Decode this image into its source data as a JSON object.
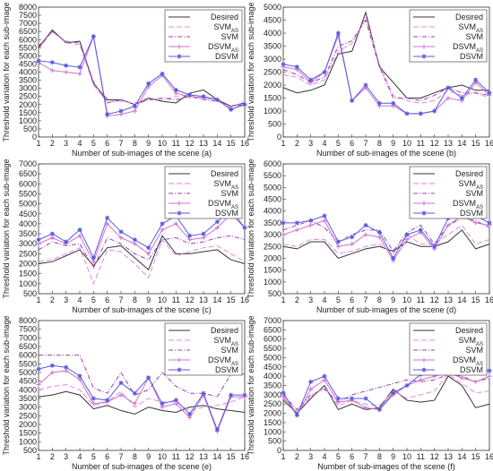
{
  "ylabel": "Threshold variation for each sub-image",
  "xlabel_prefix": "Number of sub-images of the scene",
  "legend": [
    "Desired",
    "SVM",
    "SVM",
    "DSVM",
    "DSVM"
  ],
  "legend_sub": [
    "",
    "AS",
    "",
    "AS",
    ""
  ],
  "styles": {
    "Desired": {
      "color": "#333333",
      "dash": "",
      "marker": "none"
    },
    "SVM_AS": {
      "color": "#e08ae0",
      "dash": "6,3",
      "marker": "none"
    },
    "SVM": {
      "color": "#9b3fb0",
      "dash": "5,2,1,2",
      "marker": "none"
    },
    "DSVM_AS": {
      "color": "#d070d0",
      "dash": "",
      "marker": "plus"
    },
    "DSVM": {
      "color": "#5a5ae0",
      "dash": "",
      "marker": "star"
    }
  },
  "chart_data": [
    {
      "type": "line",
      "panel": "(a)",
      "x": [
        1,
        2,
        3,
        4,
        5,
        6,
        7,
        8,
        9,
        10,
        11,
        12,
        13,
        14,
        15,
        16
      ],
      "ylim": [
        0,
        8000
      ],
      "yticks": [
        0,
        500,
        1000,
        1500,
        2000,
        2500,
        3000,
        3500,
        4000,
        4500,
        5000,
        5500,
        6000,
        6500,
        7000,
        7500,
        8000
      ],
      "series": [
        {
          "name": "Desired",
          "values": [
            5500,
            6600,
            5800,
            5900,
            3300,
            2300,
            2300,
            2000,
            2400,
            2200,
            2100,
            2700,
            2900,
            2300,
            1900,
            2100
          ]
        },
        {
          "name": "SVM_AS",
          "values": [
            5400,
            6500,
            5800,
            5700,
            3200,
            2200,
            2200,
            2100,
            2300,
            2300,
            2500,
            2600,
            2400,
            2300,
            1800,
            2200
          ]
        },
        {
          "name": "SVM",
          "values": [
            5600,
            6500,
            5900,
            5800,
            3400,
            2100,
            2300,
            2000,
            2300,
            2400,
            2300,
            2500,
            2300,
            2200,
            1900,
            2000
          ]
        },
        {
          "name": "DSVM_AS",
          "values": [
            4600,
            4100,
            4000,
            3900,
            6200,
            1300,
            1400,
            1600,
            3100,
            3800,
            2700,
            2500,
            2400,
            2300,
            1700,
            2000
          ]
        },
        {
          "name": "DSVM",
          "values": [
            4700,
            4600,
            4400,
            4300,
            6200,
            1400,
            1600,
            1900,
            3300,
            3900,
            2900,
            2600,
            2500,
            2300,
            1700,
            2000
          ]
        }
      ]
    },
    {
      "type": "line",
      "panel": "(b)",
      "x": [
        1,
        2,
        3,
        4,
        5,
        6,
        7,
        8,
        9,
        10,
        11,
        12,
        13,
        14,
        15,
        16
      ],
      "ylim": [
        0,
        5000
      ],
      "yticks": [
        0,
        500,
        1000,
        1500,
        2000,
        2500,
        3000,
        3500,
        4000,
        4500,
        5000
      ],
      "series": [
        {
          "name": "Desired",
          "values": [
            1900,
            1700,
            1800,
            2000,
            3200,
            3300,
            4800,
            2700,
            2100,
            1500,
            1500,
            1700,
            1900,
            2000,
            1800,
            1800
          ]
        },
        {
          "name": "SVM_AS",
          "values": [
            2400,
            2300,
            2000,
            2200,
            3300,
            3600,
            4600,
            2800,
            1600,
            1400,
            1300,
            1400,
            1800,
            1600,
            1700,
            1500
          ]
        },
        {
          "name": "SVM",
          "values": [
            2600,
            2400,
            2100,
            2300,
            3500,
            3700,
            4500,
            2700,
            1500,
            1500,
            1400,
            1600,
            1900,
            1700,
            1700,
            1600
          ]
        },
        {
          "name": "DSVM_AS",
          "values": [
            2700,
            2600,
            2100,
            2500,
            3900,
            1400,
            1900,
            1200,
            1200,
            900,
            900,
            1000,
            1500,
            1400,
            2100,
            1600
          ]
        },
        {
          "name": "DSVM",
          "values": [
            2800,
            2700,
            2200,
            2500,
            4000,
            1400,
            2000,
            1300,
            1300,
            900,
            900,
            1000,
            1900,
            1500,
            2200,
            1700
          ]
        }
      ]
    },
    {
      "type": "line",
      "panel": "(c)",
      "x": [
        1,
        2,
        3,
        4,
        5,
        6,
        7,
        8,
        9,
        10,
        11,
        12,
        13,
        14,
        15,
        16
      ],
      "ylim": [
        500,
        7000
      ],
      "yticks": [
        500,
        1000,
        1500,
        2000,
        2500,
        3000,
        3500,
        4000,
        4500,
        5000,
        5500,
        6000,
        6500,
        7000
      ],
      "series": [
        {
          "name": "Desired",
          "values": [
            2000,
            2100,
            2400,
            2700,
            1900,
            2800,
            2900,
            2300,
            1700,
            3400,
            2500,
            2500,
            2600,
            2700,
            2200,
            2000
          ]
        },
        {
          "name": "SVM_AS",
          "values": [
            2100,
            2200,
            2500,
            2800,
            1000,
            2700,
            2600,
            2000,
            1300,
            3200,
            2400,
            2600,
            2800,
            2900,
            2500,
            2100
          ]
        },
        {
          "name": "SVM",
          "values": [
            2700,
            3100,
            2900,
            3000,
            1800,
            3300,
            3000,
            2500,
            2200,
            3200,
            3300,
            3000,
            3100,
            3300,
            3400,
            3200
          ]
        },
        {
          "name": "DSVM_AS",
          "values": [
            3000,
            3300,
            3000,
            3400,
            2100,
            4000,
            3300,
            3000,
            2500,
            3700,
            4000,
            3200,
            3300,
            3800,
            4500,
            3800
          ]
        },
        {
          "name": "DSVM",
          "values": [
            3200,
            3500,
            3100,
            3700,
            2300,
            4300,
            3600,
            3200,
            2800,
            4000,
            4400,
            3400,
            3500,
            4100,
            4700,
            3800
          ]
        }
      ]
    },
    {
      "type": "line",
      "panel": "(d)",
      "x": [
        1,
        2,
        3,
        4,
        5,
        6,
        7,
        8,
        9,
        10,
        11,
        12,
        13,
        14,
        15,
        16
      ],
      "ylim": [
        500,
        6000
      ],
      "yticks": [
        500,
        1000,
        1500,
        2000,
        2500,
        3000,
        3500,
        4000,
        4500,
        5000,
        5500,
        6000
      ],
      "series": [
        {
          "name": "Desired",
          "values": [
            2500,
            2400,
            2700,
            2700,
            2000,
            2200,
            2400,
            2500,
            2300,
            2700,
            2500,
            2500,
            2700,
            3200,
            2400,
            2600
          ]
        },
        {
          "name": "SVM_AS",
          "values": [
            2600,
            2500,
            2800,
            2800,
            2200,
            2300,
            2500,
            2600,
            2200,
            3000,
            2600,
            2600,
            3000,
            3400,
            2600,
            2800
          ]
        },
        {
          "name": "SVM",
          "values": [
            3200,
            3400,
            3600,
            3300,
            2700,
            3000,
            3200,
            3200,
            2300,
            3100,
            3400,
            2600,
            3400,
            3700,
            3600,
            3300
          ]
        },
        {
          "name": "DSVM_AS",
          "values": [
            3000,
            3200,
            3400,
            3600,
            2500,
            2600,
            3000,
            2900,
            1900,
            2800,
            3100,
            2400,
            3400,
            3800,
            3500,
            3400
          ]
        },
        {
          "name": "DSVM",
          "values": [
            3500,
            3500,
            3600,
            3800,
            2700,
            2900,
            3400,
            3100,
            2000,
            3000,
            3200,
            2500,
            3700,
            4000,
            3800,
            3500
          ]
        }
      ]
    },
    {
      "type": "line",
      "panel": "(e)",
      "x": [
        1,
        2,
        3,
        4,
        5,
        6,
        7,
        8,
        9,
        10,
        11,
        12,
        13,
        14,
        15,
        16
      ],
      "ylim": [
        500,
        8000
      ],
      "yticks": [
        500,
        1000,
        1500,
        2000,
        2500,
        3000,
        3500,
        4000,
        4500,
        5000,
        5500,
        6000,
        6500,
        7000,
        7500,
        8000
      ],
      "series": [
        {
          "name": "Desired",
          "values": [
            3600,
            3700,
            3900,
            3700,
            2900,
            3100,
            2800,
            2600,
            3000,
            2800,
            2700,
            3000,
            3100,
            2900,
            2800,
            2700
          ]
        },
        {
          "name": "SVM_AS",
          "values": [
            4000,
            4200,
            4300,
            4000,
            3100,
            3300,
            3900,
            3000,
            3500,
            3300,
            3300,
            2800,
            3000,
            3100,
            3300,
            3600
          ]
        },
        {
          "name": "SVM",
          "values": [
            6000,
            6000,
            6000,
            6000,
            4100,
            3800,
            5000,
            3700,
            4000,
            5000,
            4200,
            3800,
            3800,
            3600,
            4900,
            4900
          ]
        },
        {
          "name": "DSVM_AS",
          "values": [
            4300,
            5000,
            5100,
            4600,
            3200,
            3300,
            3700,
            3200,
            4700,
            3000,
            3200,
            2400,
            3700,
            1600,
            3600,
            3600
          ]
        },
        {
          "name": "DSVM",
          "values": [
            5200,
            5400,
            5300,
            4800,
            3500,
            3400,
            4400,
            3800,
            4700,
            3200,
            3400,
            2600,
            3800,
            1700,
            3700,
            3700
          ]
        }
      ]
    },
    {
      "type": "line",
      "panel": "(f)",
      "x": [
        1,
        2,
        3,
        4,
        5,
        6,
        7,
        8,
        9,
        10,
        11,
        12,
        13,
        14,
        15,
        16
      ],
      "ylim": [
        0,
        7000
      ],
      "yticks": [
        0,
        500,
        1000,
        1500,
        2000,
        2500,
        3000,
        3500,
        4000,
        4500,
        5000,
        5500,
        6000,
        6500,
        7000
      ],
      "series": [
        {
          "name": "Desired",
          "values": [
            2700,
            2000,
            2800,
            3500,
            2200,
            2500,
            2200,
            2300,
            3300,
            2700,
            2600,
            2700,
            4000,
            3500,
            2300,
            2500
          ]
        },
        {
          "name": "SVM_AS",
          "values": [
            2800,
            2100,
            2900,
            3400,
            2400,
            2700,
            2500,
            2400,
            3200,
            2800,
            3000,
            3200,
            4100,
            3600,
            3100,
            3200
          ]
        },
        {
          "name": "SVM",
          "values": [
            3000,
            2200,
            3000,
            3300,
            2600,
            3000,
            3200,
            3400,
            3600,
            3800,
            3700,
            3800,
            4100,
            4000,
            3700,
            3900
          ]
        },
        {
          "name": "DSVM_AS",
          "values": [
            2900,
            1900,
            3300,
            3800,
            2600,
            2700,
            2300,
            2200,
            3000,
            3500,
            3800,
            4000,
            4200,
            3900,
            3700,
            4000
          ]
        },
        {
          "name": "DSVM",
          "values": [
            3100,
            1900,
            3700,
            4000,
            2800,
            2800,
            2800,
            2200,
            3100,
            3500,
            4100,
            4300,
            4500,
            4400,
            4300,
            4300
          ]
        }
      ]
    }
  ]
}
